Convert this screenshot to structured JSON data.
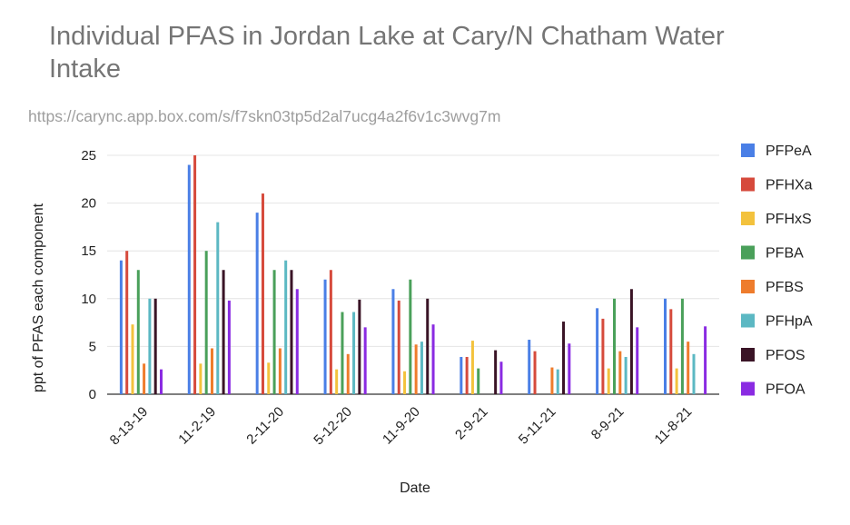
{
  "chart_data": {
    "type": "bar",
    "title": "Individual PFAS in Jordan Lake at Cary/N Chatham Water Intake",
    "subtitle": "https://carync.app.box.com/s/f7skn03tp5d2al7ucg4a2f6v1c3wvg7m",
    "xlabel": "Date",
    "ylabel": "ppt of PFAS each component",
    "ylim": [
      0,
      25
    ],
    "yticks": [
      0,
      5,
      10,
      15,
      20,
      25
    ],
    "grid": true,
    "legend_position": "right",
    "categories": [
      "8-13-19",
      "11-2-19",
      "2-11-20",
      "5-12-20",
      "11-9-20",
      "2-9-21",
      "5-11-21",
      "8-9-21",
      "11-8-21"
    ],
    "series": [
      {
        "name": "PFPeA",
        "color": "#4a7fe6",
        "values": [
          14,
          24,
          19,
          12,
          11,
          3.9,
          5.7,
          9,
          10
        ]
      },
      {
        "name": "PFHXa",
        "color": "#d64a3c",
        "values": [
          15,
          25,
          21,
          13,
          9.8,
          3.9,
          4.5,
          7.9,
          8.9
        ]
      },
      {
        "name": "PFHxS",
        "color": "#f3c23d",
        "values": [
          7.3,
          3.2,
          3.3,
          2.6,
          2.4,
          5.6,
          null,
          2.7,
          2.7
        ]
      },
      {
        "name": "PFBA",
        "color": "#4aa05a",
        "values": [
          13,
          15,
          13,
          8.6,
          12,
          2.7,
          null,
          10,
          10
        ]
      },
      {
        "name": "PFBS",
        "color": "#ee7c2c",
        "values": [
          3.2,
          4.8,
          4.8,
          4.2,
          5.2,
          null,
          2.8,
          4.5,
          5.5
        ]
      },
      {
        "name": "PFHpA",
        "color": "#5cb8c3",
        "values": [
          10,
          18,
          14,
          8.6,
          5.5,
          null,
          2.6,
          3.9,
          4.2
        ]
      },
      {
        "name": "PFOS",
        "color": "#3a1426",
        "values": [
          10,
          13,
          13,
          9.9,
          10,
          4.6,
          7.6,
          11,
          null
        ]
      },
      {
        "name": "PFOA",
        "color": "#8a2be2",
        "values": [
          2.6,
          9.8,
          11,
          7,
          7.3,
          3.4,
          5.3,
          7,
          7.1
        ]
      }
    ]
  }
}
